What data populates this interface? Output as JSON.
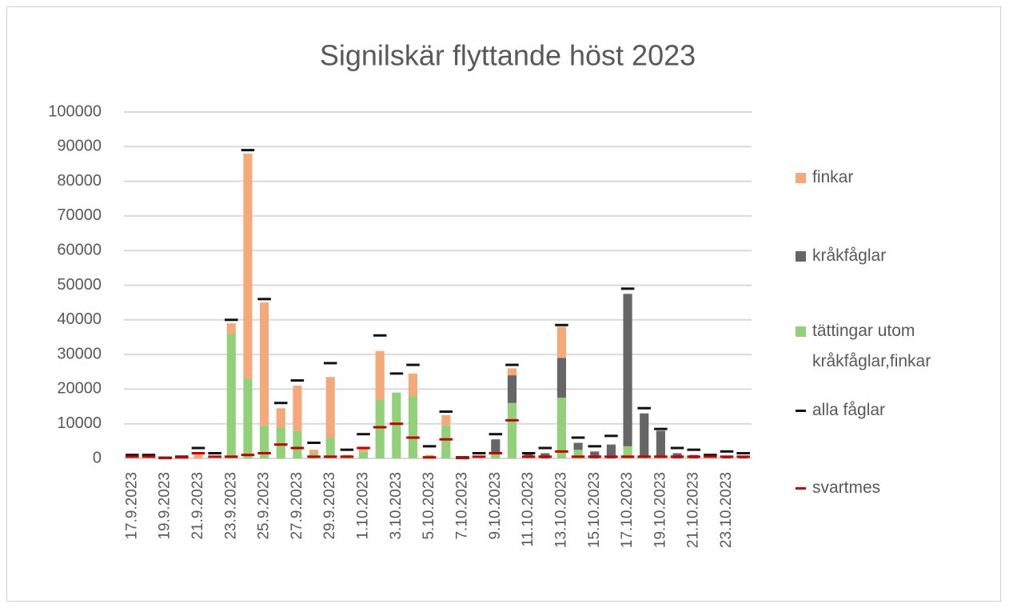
{
  "chart_data": {
    "type": "bar",
    "stacked": true,
    "title": "Signilskär flyttande höst 2023",
    "categories": [
      "17.9.2023",
      null,
      "19.9.2023",
      null,
      "21.9.2023",
      null,
      "23.9.2023",
      null,
      "25.9.2023",
      null,
      "27.9.2023",
      null,
      "29.9.2023",
      null,
      "1.10.2023",
      null,
      "3.10.2023",
      null,
      "5.10.2023",
      null,
      "7.10.2023",
      null,
      "9.10.2023",
      null,
      "11.10.2023",
      null,
      "13.10.2023",
      null,
      "15.10.2023",
      null,
      "17.10.2023",
      null,
      "19.10.2023",
      null,
      "21.10.2023",
      null,
      "23.10.2023",
      null
    ],
    "ylim": [
      0,
      100000
    ],
    "yticks": [
      0,
      10000,
      20000,
      30000,
      40000,
      50000,
      60000,
      70000,
      80000,
      90000,
      100000
    ],
    "grid": true,
    "legend": "right",
    "series": [
      {
        "name": "finkar",
        "type": "bar",
        "color": "#f4a97a",
        "values": [
          0,
          0,
          0,
          0,
          1500,
          0,
          3000,
          65000,
          35500,
          5500,
          13000,
          1000,
          17500,
          0,
          1000,
          14000,
          0,
          6500,
          0,
          3000,
          0,
          0,
          0,
          2000,
          0,
          0,
          9000,
          0,
          0,
          0,
          0,
          0,
          0,
          0,
          0,
          0,
          0,
          0
        ]
      },
      {
        "name": "kråkfåglar",
        "type": "bar",
        "color": "#666666",
        "values": [
          0,
          0,
          0,
          0,
          0,
          0,
          0,
          0,
          0,
          0,
          0,
          0,
          0,
          0,
          0,
          0,
          0,
          0,
          0,
          0,
          0,
          0,
          4000,
          8000,
          1000,
          1500,
          11500,
          2000,
          2000,
          4000,
          44000,
          12500,
          7500,
          1500,
          1000,
          0,
          500,
          500
        ]
      },
      {
        "name": "tättingar utom kråkfåglar,finkar",
        "type": "bar",
        "color": "#92d07a",
        "values": [
          0,
          0,
          0,
          0,
          0,
          0,
          36000,
          23000,
          9500,
          9000,
          8000,
          1500,
          6000,
          1000,
          2000,
          17000,
          19000,
          18000,
          1000,
          9500,
          0,
          0,
          1500,
          16000,
          500,
          0,
          17500,
          2500,
          0,
          0,
          3500,
          500,
          500,
          0,
          0,
          0,
          0,
          0
        ]
      },
      {
        "name": "alla fåglar",
        "type": "marker",
        "color": "#111111",
        "values": [
          1000,
          1000,
          200,
          500,
          3000,
          1500,
          40000,
          89000,
          46000,
          16000,
          22500,
          4500,
          27500,
          2500,
          7000,
          35500,
          24500,
          27000,
          3500,
          13500,
          300,
          1500,
          7000,
          27000,
          1500,
          3000,
          38500,
          6000,
          3500,
          6500,
          49000,
          14500,
          8500,
          3000,
          2500,
          1000,
          2000,
          1500
        ]
      },
      {
        "name": "svartmes",
        "type": "marker",
        "color": "#c00000",
        "values": [
          500,
          500,
          100,
          300,
          1500,
          500,
          500,
          1000,
          1500,
          4000,
          3000,
          500,
          500,
          500,
          3000,
          9000,
          10000,
          6000,
          300,
          5500,
          100,
          500,
          1500,
          11000,
          500,
          500,
          2000,
          500,
          500,
          500,
          500,
          500,
          500,
          500,
          500,
          500,
          500,
          500
        ]
      }
    ]
  }
}
